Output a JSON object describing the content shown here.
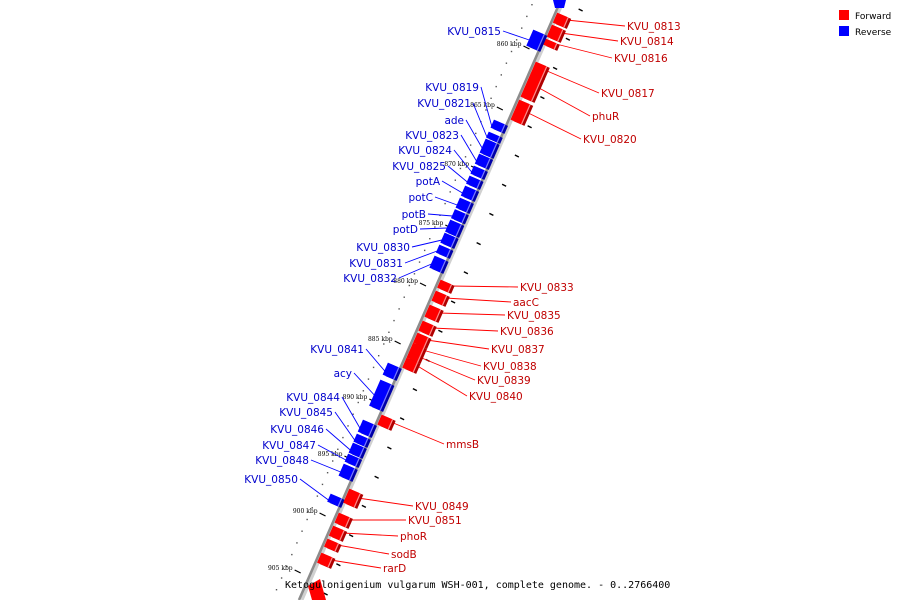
{
  "colors": {
    "forward": "#ff0000",
    "forward_dark": "#b00000",
    "forward_light": "#ff8a8a",
    "reverse": "#0000ff",
    "reverse_dark": "#0000a8",
    "reverse_light": "#7a7aff",
    "backbone": "#8c8c8c"
  },
  "legend": [
    {
      "label": "Forward",
      "strand": "forward"
    },
    {
      "label": "Reverse",
      "strand": "reverse"
    }
  ],
  "caption": "Ketogulonigenium vulgarum WSH-001, complete genome. - 0..2766400",
  "ticks": [
    {
      "label": "860 kbp",
      "strand": "reverse"
    },
    {
      "label": "865 kbp",
      "strand": "reverse"
    },
    {
      "label": "870 kbp",
      "strand": "reverse"
    },
    {
      "label": "875 kbp",
      "strand": "reverse"
    },
    {
      "label": "880 kbp",
      "strand": "reverse"
    },
    {
      "label": "885 kbp",
      "strand": "reverse"
    },
    {
      "label": "890 kbp",
      "strand": "reverse"
    },
    {
      "label": "895 kbp",
      "strand": "reverse"
    },
    {
      "label": "900 kbp",
      "strand": "reverse"
    },
    {
      "label": "905 kbp",
      "strand": "reverse"
    }
  ],
  "genes": [
    {
      "name": "KVU_0813",
      "strand": "forward"
    },
    {
      "name": "KVU_0814",
      "strand": "forward"
    },
    {
      "name": "KVU_0816",
      "strand": "forward"
    },
    {
      "name": "KVU_0817",
      "strand": "forward"
    },
    {
      "name": "phuR",
      "strand": "forward"
    },
    {
      "name": "KVU_0820",
      "strand": "forward"
    },
    {
      "name": "KVU_0815",
      "strand": "reverse"
    },
    {
      "name": "KVU_0819",
      "strand": "reverse"
    },
    {
      "name": "KVU_0821",
      "strand": "reverse"
    },
    {
      "name": "ade",
      "strand": "reverse"
    },
    {
      "name": "KVU_0823",
      "strand": "reverse"
    },
    {
      "name": "KVU_0824",
      "strand": "reverse"
    },
    {
      "name": "KVU_0825",
      "strand": "reverse"
    },
    {
      "name": "potA",
      "strand": "reverse"
    },
    {
      "name": "potC",
      "strand": "reverse"
    },
    {
      "name": "potB",
      "strand": "reverse"
    },
    {
      "name": "potD",
      "strand": "reverse"
    },
    {
      "name": "KVU_0830",
      "strand": "reverse"
    },
    {
      "name": "KVU_0831",
      "strand": "reverse"
    },
    {
      "name": "KVU_0832",
      "strand": "reverse"
    },
    {
      "name": "KVU_0833",
      "strand": "forward"
    },
    {
      "name": "aacC",
      "strand": "forward"
    },
    {
      "name": "KVU_0835",
      "strand": "forward"
    },
    {
      "name": "KVU_0836",
      "strand": "forward"
    },
    {
      "name": "KVU_0837",
      "strand": "forward"
    },
    {
      "name": "KVU_0838",
      "strand": "forward"
    },
    {
      "name": "KVU_0839",
      "strand": "forward"
    },
    {
      "name": "KVU_0840",
      "strand": "forward"
    },
    {
      "name": "KVU_0841",
      "strand": "reverse"
    },
    {
      "name": "acy",
      "strand": "reverse"
    },
    {
      "name": "mmsB",
      "strand": "forward"
    },
    {
      "name": "KVU_0844",
      "strand": "reverse"
    },
    {
      "name": "KVU_0845",
      "strand": "reverse"
    },
    {
      "name": "KVU_0846",
      "strand": "reverse"
    },
    {
      "name": "KVU_0847",
      "strand": "reverse"
    },
    {
      "name": "KVU_0848",
      "strand": "reverse"
    },
    {
      "name": "KVU_0850",
      "strand": "reverse"
    },
    {
      "name": "KVU_0849",
      "strand": "forward"
    },
    {
      "name": "KVU_0851",
      "strand": "forward"
    },
    {
      "name": "phoR",
      "strand": "forward"
    },
    {
      "name": "sodB",
      "strand": "forward"
    },
    {
      "name": "rarD",
      "strand": "forward"
    }
  ]
}
